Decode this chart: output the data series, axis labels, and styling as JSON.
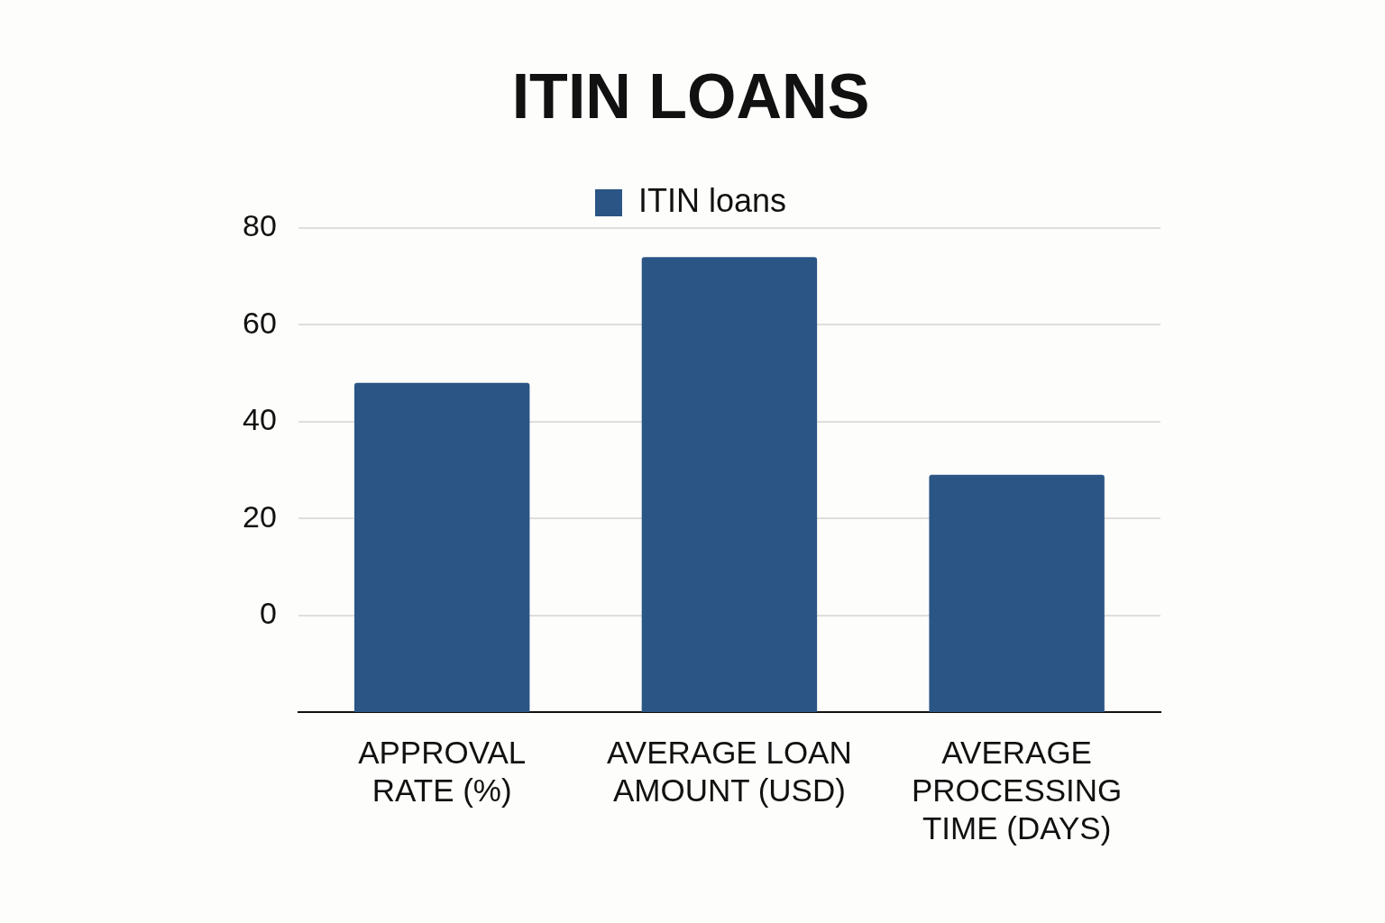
{
  "chart_data": {
    "type": "bar",
    "title": "ITIN LOANS",
    "categories": [
      "APPROVAL RATE (%)",
      "AVERAGE LOAN AMOUNT (USD)",
      "AVERAGE PROCESSING TIME (DAYS)"
    ],
    "series": [
      {
        "name": "ITIN loans",
        "color": "#2a5585",
        "values": [
          68,
          94,
          49
        ],
        "base": [
          -20,
          -20,
          -20
        ]
      }
    ],
    "ylim": [
      -20,
      80
    ],
    "yticks": [
      0,
      20,
      40,
      60,
      80
    ],
    "grid": "y",
    "legend": "top"
  }
}
